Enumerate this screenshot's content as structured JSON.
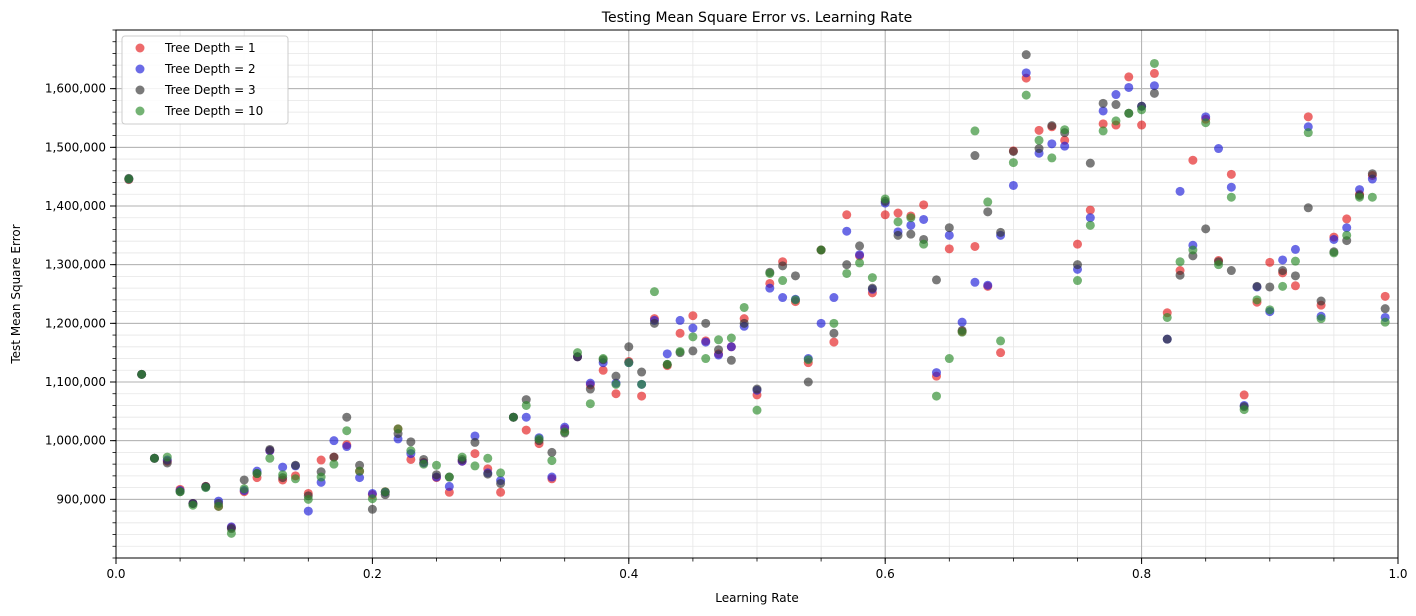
{
  "chart_data": {
    "type": "scatter",
    "title": "Testing Mean Square Error vs. Learning Rate",
    "xlabel": "Learning Rate",
    "ylabel": "Test Mean Square Error",
    "xlim": [
      0.0,
      1.0
    ],
    "ylim": [
      800000,
      1700000
    ],
    "xticks": [
      0.0,
      0.2,
      0.4,
      0.6,
      0.8,
      1.0
    ],
    "xtick_labels": [
      "0.0",
      "0.2",
      "0.4",
      "0.6",
      "0.8",
      "1.0"
    ],
    "yticks": [
      900000,
      1000000,
      1100000,
      1200000,
      1300000,
      1400000,
      1500000,
      1600000
    ],
    "ytick_labels": [
      "900,000",
      "1,000,000",
      "1,100,000",
      "1,200,000",
      "1,300,000",
      "1,400,000",
      "1,500,000",
      "1,600,000"
    ],
    "grid": true,
    "legend_position": "top-left",
    "x": [
      0.01,
      0.02,
      0.03,
      0.04,
      0.05,
      0.06,
      0.07,
      0.08,
      0.09,
      0.1,
      0.11,
      0.12,
      0.13,
      0.14,
      0.15,
      0.16,
      0.17,
      0.18,
      0.19,
      0.2,
      0.21,
      0.22,
      0.23,
      0.24,
      0.25,
      0.26,
      0.27,
      0.28,
      0.29,
      0.3,
      0.31,
      0.32,
      0.33,
      0.34,
      0.35,
      0.36,
      0.37,
      0.38,
      0.39,
      0.4,
      0.41,
      0.42,
      0.43,
      0.44,
      0.45,
      0.46,
      0.47,
      0.48,
      0.49,
      0.5,
      0.51,
      0.52,
      0.53,
      0.54,
      0.55,
      0.56,
      0.57,
      0.58,
      0.59,
      0.6,
      0.61,
      0.62,
      0.63,
      0.64,
      0.65,
      0.66,
      0.67,
      0.68,
      0.69,
      0.7,
      0.71,
      0.72,
      0.73,
      0.74,
      0.75,
      0.76,
      0.77,
      0.78,
      0.79,
      0.8,
      0.81,
      0.82,
      0.83,
      0.84,
      0.85,
      0.86,
      0.87,
      0.88,
      0.89,
      0.9,
      0.91,
      0.92,
      0.93,
      0.94,
      0.95,
      0.96,
      0.97,
      0.98,
      0.99
    ],
    "series": [
      {
        "name": "Tree Depth = 1",
        "color": "#e41a1c",
        "values": [
          1445000,
          1113000,
          970000,
          965000,
          917000,
          893000,
          922000,
          888000,
          852000,
          913000,
          937000,
          983000,
          933000,
          940000,
          910000,
          967000,
          972000,
          993000,
          948000,
          908000,
          913000,
          1020000,
          968000,
          963000,
          937000,
          912000,
          965000,
          978000,
          952000,
          912000,
          1040000,
          1018000,
          995000,
          935000,
          1020000,
          1143000,
          1095000,
          1120000,
          1080000,
          1135000,
          1076000,
          1208000,
          1128000,
          1183000,
          1213000,
          1170000,
          1148000,
          1160000,
          1208000,
          1078000,
          1268000,
          1305000,
          1237000,
          1133000,
          1325000,
          1168000,
          1385000,
          1315000,
          1252000,
          1385000,
          1388000,
          1383000,
          1402000,
          1110000,
          1327000,
          1186000,
          1331000,
          1263000,
          1150000,
          1494000,
          1618000,
          1529000,
          1535000,
          1512000,
          1335000,
          1393000,
          1540000,
          1538000,
          1620000,
          1538000,
          1626000,
          1218000,
          1290000,
          1478000,
          1548000,
          1307000,
          1454000,
          1078000,
          1236000,
          1304000,
          1286000,
          1264000,
          1552000,
          1231000,
          1347000,
          1378000,
          1420000,
          1452000,
          1246000
        ]
      },
      {
        "name": "Tree Depth = 2",
        "color": "#1c1cd8",
        "values": [
          1446000,
          1113000,
          970000,
          967000,
          915000,
          893000,
          921000,
          897000,
          853000,
          915000,
          948000,
          983000,
          955000,
          957000,
          880000,
          929000,
          1000000,
          990000,
          937000,
          910000,
          912000,
          1003000,
          978000,
          962000,
          938000,
          922000,
          965000,
          1008000,
          945000,
          932000,
          1040000,
          1040000,
          1005000,
          938000,
          1023000,
          1143000,
          1098000,
          1133000,
          1098000,
          1133000,
          1096000,
          1205000,
          1148000,
          1205000,
          1192000,
          1168000,
          1146000,
          1160000,
          1195000,
          1086000,
          1260000,
          1244000,
          1241000,
          1140000,
          1200000,
          1244000,
          1357000,
          1317000,
          1258000,
          1405000,
          1356000,
          1367000,
          1377000,
          1116000,
          1350000,
          1202000,
          1270000,
          1265000,
          1350000,
          1435000,
          1627000,
          1490000,
          1506000,
          1502000,
          1292000,
          1380000,
          1562000,
          1590000,
          1602000,
          1570000,
          1605000,
          1173000,
          1425000,
          1333000,
          1552000,
          1498000,
          1432000,
          1060000,
          1262000,
          1220000,
          1308000,
          1326000,
          1535000,
          1212000,
          1343000,
          1363000,
          1428000,
          1446000,
          1210000
        ]
      },
      {
        "name": "Tree Depth = 3",
        "color": "#333333",
        "values": [
          1447000,
          1113000,
          970000,
          962000,
          913000,
          893000,
          922000,
          893000,
          850000,
          933000,
          944000,
          985000,
          937000,
          958000,
          906000,
          947000,
          972000,
          1040000,
          958000,
          883000,
          908000,
          1012000,
          998000,
          968000,
          942000,
          938000,
          968000,
          997000,
          943000,
          927000,
          1040000,
          1070000,
          1000000,
          980000,
          1013000,
          1143000,
          1088000,
          1138000,
          1110000,
          1160000,
          1117000,
          1200000,
          1130000,
          1150000,
          1153000,
          1200000,
          1155000,
          1137000,
          1200000,
          1088000,
          1287000,
          1298000,
          1281000,
          1100000,
          1325000,
          1183000,
          1300000,
          1332000,
          1260000,
          1408000,
          1350000,
          1352000,
          1343000,
          1274000,
          1363000,
          1188000,
          1486000,
          1390000,
          1355000,
          1493000,
          1658000,
          1498000,
          1537000,
          1525000,
          1300000,
          1473000,
          1575000,
          1573000,
          1558000,
          1570000,
          1592000,
          1173000,
          1282000,
          1315000,
          1361000,
          1305000,
          1290000,
          1058000,
          1263000,
          1262000,
          1290000,
          1281000,
          1397000,
          1238000,
          1322000,
          1341000,
          1418000,
          1455000,
          1225000
        ]
      },
      {
        "name": "Tree Depth = 10",
        "color": "#2a8a2a",
        "values": [
          1446000,
          1113000,
          970000,
          972000,
          913000,
          890000,
          920000,
          888000,
          842000,
          918000,
          944000,
          970000,
          942000,
          935000,
          900000,
          938000,
          960000,
          1017000,
          948000,
          901000,
          913000,
          1020000,
          983000,
          960000,
          958000,
          938000,
          972000,
          957000,
          970000,
          945000,
          1040000,
          1060000,
          1003000,
          966000,
          1015000,
          1150000,
          1063000,
          1140000,
          1096000,
          1133000,
          1096000,
          1254000,
          1130000,
          1152000,
          1177000,
          1140000,
          1172000,
          1175000,
          1227000,
          1052000,
          1285000,
          1273000,
          1240000,
          1138000,
          1325000,
          1200000,
          1285000,
          1303000,
          1278000,
          1412000,
          1373000,
          1380000,
          1335000,
          1076000,
          1140000,
          1185000,
          1528000,
          1407000,
          1170000,
          1474000,
          1589000,
          1512000,
          1482000,
          1530000,
          1273000,
          1367000,
          1528000,
          1545000,
          1558000,
          1564000,
          1643000,
          1210000,
          1305000,
          1325000,
          1542000,
          1300000,
          1415000,
          1053000,
          1240000,
          1223000,
          1263000,
          1306000,
          1525000,
          1208000,
          1320000,
          1350000,
          1415000,
          1415000,
          1202000
        ]
      }
    ]
  }
}
